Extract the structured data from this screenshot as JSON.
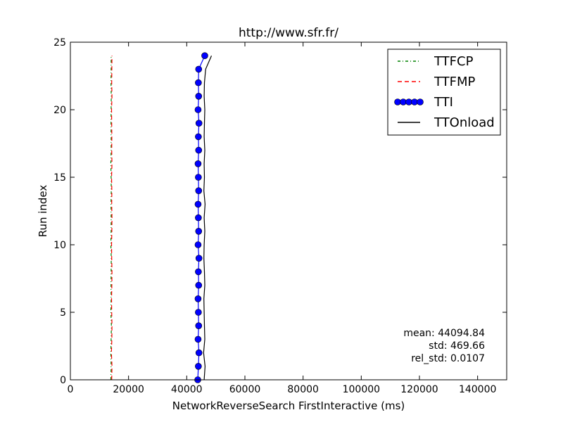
{
  "chart_data": {
    "type": "line",
    "title": "http://www.sfr.fr/",
    "xlabel": "NetworkReverseSearch FirstInteractive (ms)",
    "ylabel": "Run index",
    "xlim": [
      0,
      150000
    ],
    "ylim": [
      0,
      25
    ],
    "xticks": [
      0,
      20000,
      40000,
      60000,
      80000,
      100000,
      120000,
      140000
    ],
    "yticks": [
      0,
      5,
      10,
      15,
      20,
      25
    ],
    "grid": false,
    "legend_position": "top-right",
    "y": [
      0,
      1,
      2,
      3,
      4,
      5,
      6,
      7,
      8,
      9,
      10,
      11,
      12,
      13,
      14,
      15,
      16,
      17,
      18,
      19,
      20,
      21,
      22,
      23,
      24
    ],
    "series": [
      {
        "name": "TTFCP",
        "color": "#008000",
        "linestyle": "dashdot",
        "marker": "none",
        "x": [
          13900,
          14000,
          13900,
          14000,
          14100,
          13900,
          14000,
          13950,
          14000,
          14050,
          13900,
          14000,
          14000,
          13950,
          14050,
          14000,
          13900,
          14000,
          14000,
          13950,
          14000,
          14050,
          13950,
          14000,
          14000
        ]
      },
      {
        "name": "TTFMP",
        "color": "#ff0000",
        "linestyle": "dashed",
        "marker": "none",
        "x": [
          14200,
          14300,
          14100,
          14250,
          14300,
          14200,
          14150,
          14250,
          14300,
          14200,
          14150,
          14250,
          14300,
          14200,
          14250,
          14150,
          14300,
          14200,
          14250,
          14200,
          14150,
          14300,
          14200,
          14250,
          14300
        ]
      },
      {
        "name": "TTI",
        "color": "#0000ff",
        "linestyle": "solid",
        "marker": "circle",
        "x": [
          43800,
          44000,
          44200,
          43900,
          44100,
          44000,
          43900,
          44100,
          44000,
          44200,
          43900,
          44100,
          44000,
          43900,
          44100,
          44000,
          43900,
          44100,
          44000,
          44200,
          43900,
          44100,
          44000,
          44100,
          46200
        ]
      },
      {
        "name": "TTOnload",
        "color": "#000000",
        "linestyle": "solid",
        "marker": "none",
        "x": [
          46000,
          46300,
          45800,
          46200,
          46100,
          46000,
          45900,
          46200,
          46100,
          45900,
          46000,
          46200,
          46000,
          46300,
          45900,
          46100,
          46000,
          46200,
          46000,
          46100,
          46200,
          46000,
          46100,
          46500,
          48500
        ]
      }
    ],
    "annotations": {
      "mean": "mean: 44094.84",
      "std": "std: 469.66",
      "rel_std": "rel_std: 0.0107"
    }
  }
}
